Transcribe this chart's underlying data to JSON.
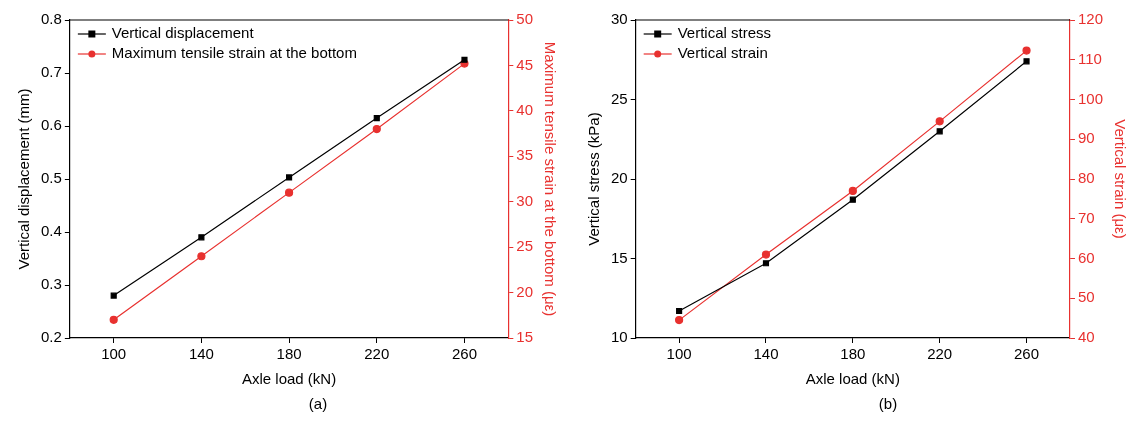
{
  "chart_data": [
    {
      "type": "line",
      "xlabel": "Axle load (kN)",
      "ylabel": "Vertical displacement (mm)",
      "y2label": "Maximum tensile strain at the bottom (με)",
      "x": [
        100,
        140,
        180,
        220,
        260
      ],
      "xlim": [
        80,
        280
      ],
      "xticks": [
        100,
        140,
        180,
        220,
        260
      ],
      "ylim": [
        0.2,
        0.8
      ],
      "yticks": [
        0.2,
        0.3,
        0.4,
        0.5,
        0.6,
        0.7,
        0.8
      ],
      "y2lim": [
        15,
        50
      ],
      "y2ticks": [
        15,
        20,
        25,
        30,
        35,
        40,
        45,
        50
      ],
      "legend": "top left",
      "grid": false,
      "annotations": [
        "(a)"
      ],
      "series": [
        {
          "name": "Vertical displacement",
          "color": "#000000",
          "marker": "square",
          "values": [
            0.28,
            0.39,
            0.503,
            0.615,
            0.725
          ]
        },
        {
          "name": "Maximum tensile strain at the bottom",
          "color": "#e8312f",
          "marker": "circle",
          "axis": "y2",
          "values": [
            17,
            24,
            31,
            38,
            45.2
          ]
        }
      ]
    },
    {
      "type": "line",
      "xlabel": "Axle load (kN)",
      "ylabel": "Vertical stress (kPa)",
      "y2label": "Vertical strain (με)",
      "x": [
        100,
        140,
        180,
        220,
        260
      ],
      "xlim": [
        80,
        280
      ],
      "xticks": [
        100,
        140,
        180,
        220,
        260
      ],
      "ylim": [
        10,
        30
      ],
      "yticks": [
        10,
        15,
        20,
        25,
        30
      ],
      "y2lim": [
        40,
        120
      ],
      "y2ticks": [
        40,
        50,
        60,
        70,
        80,
        90,
        100,
        110,
        120
      ],
      "legend": "top left",
      "grid": false,
      "annotations": [
        "(b)"
      ],
      "series": [
        {
          "name": "Vertical stress",
          "color": "#000000",
          "marker": "square",
          "values": [
            11.7,
            14.7,
            18.7,
            23.0,
            27.4
          ]
        },
        {
          "name": "Vertical strain",
          "color": "#e8312f",
          "marker": "circle",
          "axis": "y2",
          "values": [
            44.5,
            61,
            77,
            94.5,
            112.3
          ]
        }
      ]
    }
  ]
}
